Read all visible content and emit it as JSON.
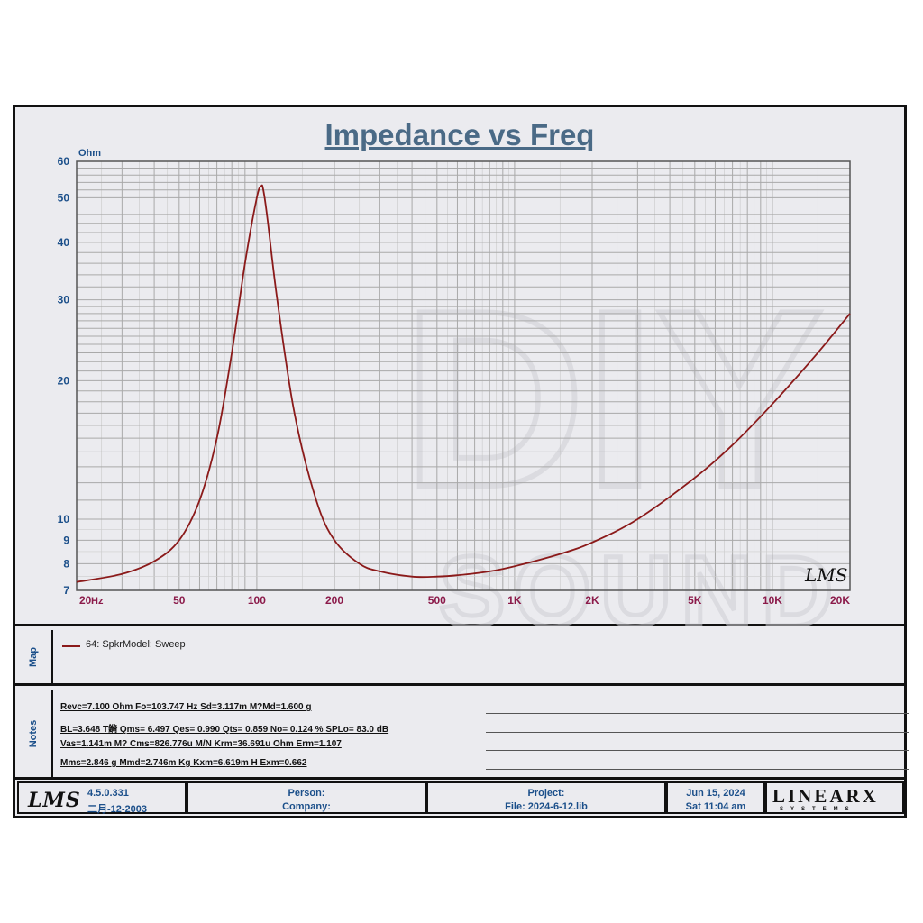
{
  "chart_data": {
    "type": "line",
    "title": "Impedance vs Freq",
    "ylabel": "Ohm",
    "xlabel": "Hz",
    "x_scale": "log",
    "y_scale": "log",
    "xlim": [
      20,
      20000
    ],
    "ylim": [
      7,
      60
    ],
    "x_ticks": [
      "20",
      "50",
      "100",
      "200",
      "500",
      "1K",
      "2K",
      "5K",
      "10K",
      "20K"
    ],
    "y_ticks": [
      "60",
      "50",
      "40",
      "30",
      "20",
      "10",
      "9",
      "8",
      "7"
    ],
    "grid": true,
    "series": [
      {
        "name": "64: SpkrModel: Sweep",
        "color": "#8b1a1a",
        "x": [
          20,
          30,
          40,
          50,
          60,
          70,
          80,
          90,
          100,
          104,
          106,
          110,
          120,
          140,
          170,
          200,
          250,
          300,
          400,
          500,
          600,
          800,
          1000,
          1500,
          2000,
          3000,
          5000,
          7000,
          10000,
          15000,
          20000
        ],
        "y": [
          7.3,
          7.6,
          8.1,
          9.0,
          11.0,
          15.0,
          23.0,
          36.0,
          50.0,
          53.0,
          52.0,
          45.0,
          30.0,
          17.0,
          11.0,
          9.0,
          8.0,
          7.7,
          7.5,
          7.5,
          7.55,
          7.7,
          7.9,
          8.4,
          8.9,
          10.0,
          12.3,
          14.5,
          17.8,
          23.0,
          28.0
        ]
      }
    ]
  },
  "watermark": {
    "big": "DIY",
    "small": "SOUND",
    "corner": "LMS"
  },
  "map": {
    "tab_label": "Map",
    "legend_label": "64: SpkrModel: Sweep"
  },
  "notes": {
    "tab_label": "Notes",
    "lines": [
      "Revc=7.100 Ohm  Fo=103.747 Hz  Sd=3.117m M?Md=1.600 g",
      "BL=3.648 T鏅  Qms= 6.497  Qes= 0.990  Qts= 0.859  No= 0.124 %  SPLo= 83.0 dB",
      "Vas=1.141m M? Cms=826.776u M/N  Krm=36.691u Ohm  Erm=1.107",
      "Mms=2.846 g  Mmd=2.746m Kg  Kxm=6.619m H  Exm=0.662"
    ]
  },
  "footer": {
    "logo": "LMS",
    "version": "4.5.0.331",
    "build_date": "二月-12-2003",
    "person_label": "Person:",
    "company_label": "Company:",
    "project_label": "Project:",
    "file_label": "File: 2024-6-12.lib",
    "date": "Jun 15, 2024",
    "time": "Sat 11:04 am",
    "brand": "LINEARX",
    "brand_sub": "SYSTEMS"
  }
}
